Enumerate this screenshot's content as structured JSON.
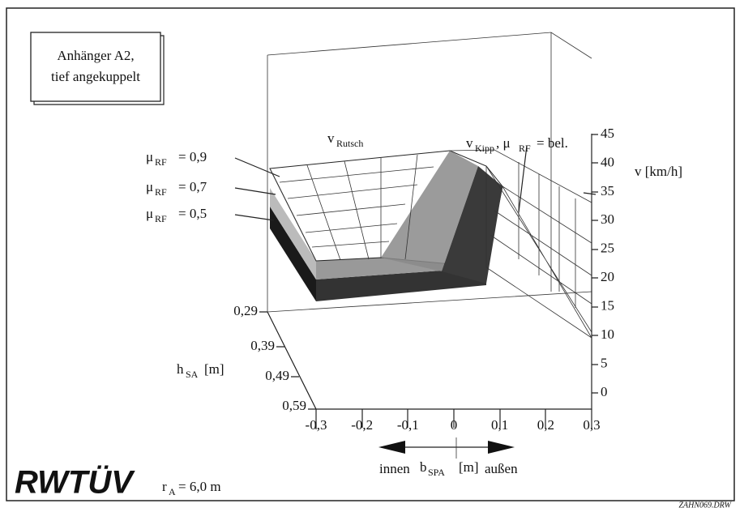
{
  "info_box": {
    "line1": "Anhänger A2,",
    "line2": "tief angekuppelt"
  },
  "mu_labels": [
    {
      "symbol": "μ",
      "sub": "RF",
      "value": "= 0,9"
    },
    {
      "symbol": "μ",
      "sub": "RF",
      "value": "= 0,7"
    },
    {
      "symbol": "μ",
      "sub": "RF",
      "value": "= 0,5"
    }
  ],
  "surface_labels": {
    "rutsch": {
      "main": "v",
      "sub": "Rutsch"
    },
    "kipp": {
      "main": "v",
      "sub": "Kipp",
      "mid": ", μ",
      "sub2": "RF",
      "end": "= bel."
    }
  },
  "v_axis": {
    "label": "v [km/h]",
    "ticks": [
      "0",
      "5",
      "10",
      "15",
      "20",
      "25",
      "30",
      "35",
      "40",
      "45"
    ]
  },
  "h_axis": {
    "main": "h",
    "sub": "SA",
    "unit": "[m]",
    "ticks": [
      "0,29",
      "0,39",
      "0,49",
      "0,59"
    ]
  },
  "b_axis": {
    "ticks": [
      "-0,3",
      "-0,2",
      "-0,1",
      "0",
      "0,1",
      "0,2",
      "0,3"
    ],
    "left": "innen",
    "main": "b",
    "sub": "SPA",
    "unit": "[m]",
    "right": "außen"
  },
  "footer": {
    "logo": "RWTÜV",
    "r_main": "r",
    "r_sub": "A",
    "r_value": "= 6,0 m",
    "file": "ZAHN069.DRW"
  }
}
